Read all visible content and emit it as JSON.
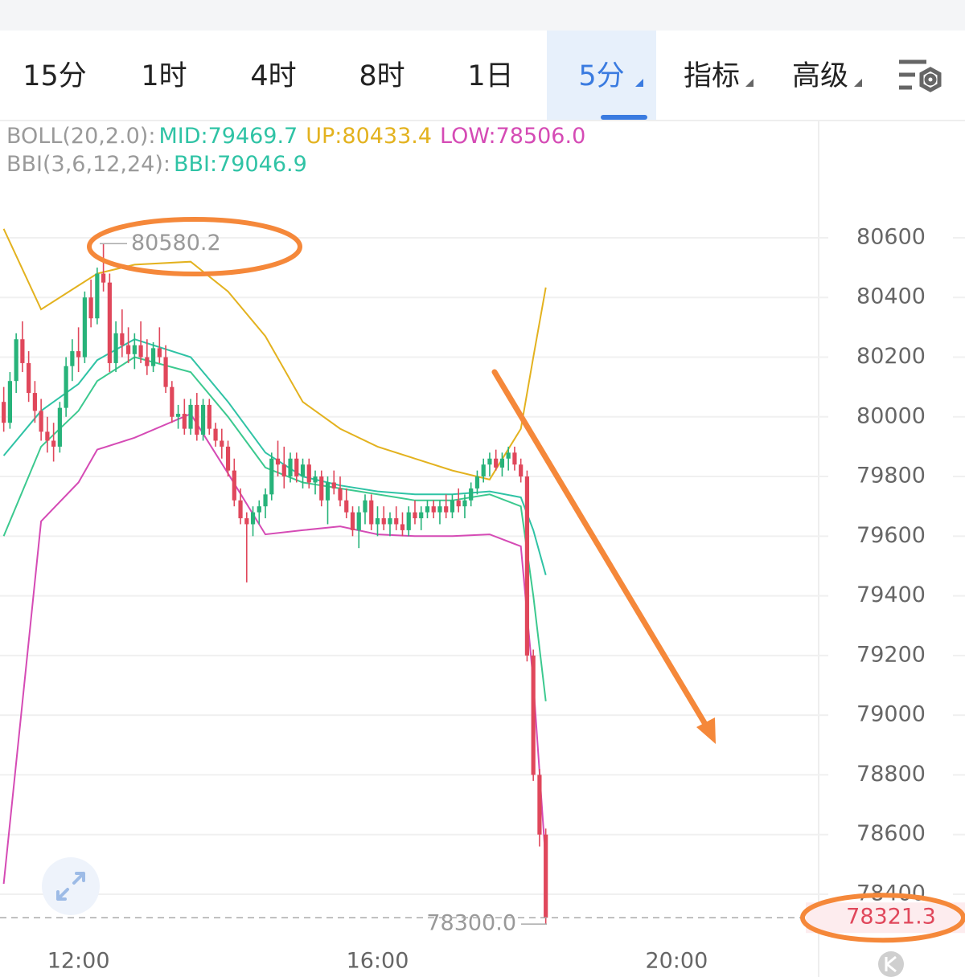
{
  "tabs": [
    {
      "label": "15分"
    },
    {
      "label": "1时"
    },
    {
      "label": "4时"
    },
    {
      "label": "8时"
    },
    {
      "label": "1日"
    },
    {
      "label": "5分",
      "active": true,
      "dropdown": true
    },
    {
      "label": "指标",
      "dropdown": true
    },
    {
      "label": "高级",
      "dropdown": true
    }
  ],
  "legend": [
    [
      {
        "text": "BOLL(20,2.0):",
        "color": "#9a9a9a"
      },
      {
        "text": "MID:79469.7",
        "color": "#2fc3a5"
      },
      {
        "text": "UP:80433.4",
        "color": "#e3b21f"
      },
      {
        "text": "LOW:78506.0",
        "color": "#d54bb5"
      }
    ],
    [
      {
        "text": "BBI(3,6,12,24):",
        "color": "#9a9a9a"
      },
      {
        "text": "BBI:79046.9",
        "color": "#2fc3a5"
      }
    ]
  ],
  "chart_data": {
    "type": "candlestick",
    "xlim": [
      "10:57",
      "21:54"
    ],
    "xticks": [
      "12:00",
      "16:00",
      "20:00"
    ],
    "ylim": [
      78233,
      80993
    ],
    "yticks": [
      80600,
      80400,
      80200,
      80000,
      79800,
      79600,
      79400,
      79200,
      79000,
      78800,
      78600,
      78400
    ],
    "up_color": "#27b37a",
    "down_color": "#e0475b",
    "candles": {
      "x": [
        "11:00",
        "11:05",
        "11:10",
        "11:15",
        "11:20",
        "11:25",
        "11:30",
        "11:35",
        "11:40",
        "11:45",
        "11:50",
        "11:55",
        "12:00",
        "12:05",
        "12:10",
        "12:15",
        "12:20",
        "12:25",
        "12:30",
        "12:35",
        "12:40",
        "12:45",
        "12:50",
        "12:55",
        "13:00",
        "13:05",
        "13:10",
        "13:15",
        "13:20",
        "13:25",
        "13:30",
        "13:35",
        "13:40",
        "13:45",
        "13:50",
        "13:55",
        "14:00",
        "14:05",
        "14:10",
        "14:15",
        "14:20",
        "14:25",
        "14:30",
        "14:35",
        "14:40",
        "14:45",
        "14:50",
        "14:55",
        "15:00",
        "15:05",
        "15:10",
        "15:15",
        "15:20",
        "15:25",
        "15:30",
        "15:35",
        "15:40",
        "15:45",
        "15:50",
        "15:55",
        "16:00",
        "16:05",
        "16:10",
        "16:15",
        "16:20",
        "16:25",
        "16:30",
        "16:35",
        "16:40",
        "16:45",
        "16:50",
        "16:55",
        "17:00",
        "17:05",
        "17:10",
        "17:15",
        "17:20",
        "17:25",
        "17:30",
        "17:35",
        "17:40",
        "17:45",
        "17:50",
        "17:55",
        "18:00",
        "18:05",
        "18:10",
        "18:15"
      ],
      "ohlc": [
        [
          80050,
          80100,
          79950,
          79980
        ],
        [
          79980,
          80150,
          79960,
          80120
        ],
        [
          80120,
          80280,
          80080,
          80260
        ],
        [
          80260,
          80320,
          80150,
          80180
        ],
        [
          80180,
          80220,
          80050,
          80080
        ],
        [
          80080,
          80120,
          79980,
          80020
        ],
        [
          80020,
          80060,
          79920,
          79950
        ],
        [
          79950,
          80000,
          79880,
          79920
        ],
        [
          79920,
          79980,
          79850,
          79900
        ],
        [
          79900,
          80050,
          79880,
          80030
        ],
        [
          80030,
          80200,
          80000,
          80170
        ],
        [
          80170,
          80260,
          80120,
          80220
        ],
        [
          80220,
          80300,
          80150,
          80200
        ],
        [
          80200,
          80420,
          80180,
          80400
        ],
        [
          80400,
          80460,
          80300,
          80330
        ],
        [
          80330,
          80500,
          80310,
          80480
        ],
        [
          80480,
          80580.2,
          80420,
          80450
        ],
        [
          80450,
          80480,
          80150,
          80180
        ],
        [
          80180,
          80320,
          80150,
          80280
        ],
        [
          80280,
          80360,
          80200,
          80240
        ],
        [
          80240,
          80300,
          80180,
          80210
        ],
        [
          80210,
          80280,
          80160,
          80240
        ],
        [
          80240,
          80320,
          80180,
          80200
        ],
        [
          80200,
          80260,
          80140,
          80170
        ],
        [
          80170,
          80250,
          80150,
          80230
        ],
        [
          80230,
          80300,
          80180,
          80200
        ],
        [
          80200,
          80240,
          80080,
          80100
        ],
        [
          80100,
          80120,
          79980,
          80000
        ],
        [
          80000,
          80040,
          79960,
          80010
        ],
        [
          80010,
          80060,
          79940,
          79960
        ],
        [
          79960,
          80060,
          79940,
          80040
        ],
        [
          80040,
          80080,
          79920,
          79940
        ],
        [
          79940,
          80060,
          79920,
          80040
        ],
        [
          80040,
          80060,
          79940,
          79960
        ],
        [
          79960,
          79980,
          79900,
          79920
        ],
        [
          79920,
          79960,
          79860,
          79900
        ],
        [
          79900,
          79920,
          79800,
          79820
        ],
        [
          79820,
          79860,
          79700,
          79720
        ],
        [
          79720,
          79760,
          79640,
          79660
        ],
        [
          79660,
          79680,
          79445,
          79640
        ],
        [
          79640,
          79700,
          79600,
          79680
        ],
        [
          79680,
          79720,
          79640,
          79700
        ],
        [
          79700,
          79760,
          79660,
          79740
        ],
        [
          79740,
          79880,
          79720,
          79860
        ],
        [
          79860,
          79920,
          79800,
          79840
        ],
        [
          79840,
          79900,
          79760,
          79800
        ],
        [
          79800,
          79880,
          79780,
          79860
        ],
        [
          79860,
          79880,
          79780,
          79800
        ],
        [
          79800,
          79860,
          79760,
          79840
        ],
        [
          79840,
          79860,
          79760,
          79780
        ],
        [
          79780,
          79820,
          79740,
          79800
        ],
        [
          79800,
          79820,
          79700,
          79720
        ],
        [
          79720,
          79800,
          79640,
          79780
        ],
        [
          79780,
          79820,
          79740,
          79760
        ],
        [
          79760,
          79800,
          79700,
          79720
        ],
        [
          79720,
          79760,
          79660,
          79680
        ],
        [
          79680,
          79700,
          79600,
          79620
        ],
        [
          79620,
          79700,
          79560,
          79680
        ],
        [
          79680,
          79740,
          79640,
          79720
        ],
        [
          79720,
          79740,
          79620,
          79640
        ],
        [
          79640,
          79700,
          79600,
          79660
        ],
        [
          79660,
          79700,
          79620,
          79640
        ],
        [
          79640,
          79680,
          79600,
          79660
        ],
        [
          79660,
          79700,
          79620,
          79640
        ],
        [
          79640,
          79680,
          79600,
          79620
        ],
        [
          79620,
          79700,
          79600,
          79680
        ],
        [
          79680,
          79720,
          79640,
          79660
        ],
        [
          79660,
          79700,
          79620,
          79680
        ],
        [
          79680,
          79720,
          79660,
          79700
        ],
        [
          79700,
          79720,
          79660,
          79680
        ],
        [
          79680,
          79720,
          79640,
          79700
        ],
        [
          79700,
          79740,
          79660,
          79680
        ],
        [
          79680,
          79740,
          79660,
          79720
        ],
        [
          79720,
          79760,
          79680,
          79700
        ],
        [
          79700,
          79740,
          79660,
          79720
        ],
        [
          79720,
          79780,
          79700,
          79760
        ],
        [
          79760,
          79820,
          79740,
          79800
        ],
        [
          79800,
          79860,
          79780,
          79840
        ],
        [
          79840,
          79880,
          79800,
          79860
        ],
        [
          79860,
          79890,
          79820,
          79830
        ],
        [
          79830,
          79880,
          79800,
          79860
        ],
        [
          79860,
          79900,
          79820,
          79880
        ],
        [
          79880,
          79900,
          79820,
          79840
        ],
        [
          79840,
          79860,
          79780,
          79800
        ],
        [
          79800,
          79820,
          79180,
          79200
        ],
        [
          79200,
          79220,
          78780,
          78800
        ],
        [
          78800,
          78820,
          78560,
          78600
        ],
        [
          78600,
          78620,
          78300,
          78321.3
        ]
      ]
    },
    "lines": {
      "x": [
        "11:00",
        "11:30",
        "12:00",
        "12:15",
        "12:45",
        "13:30",
        "14:00",
        "14:30",
        "15:00",
        "15:30",
        "16:00",
        "16:30",
        "17:00",
        "17:30",
        "17:55",
        "18:05",
        "18:15"
      ],
      "series": [
        {
          "name": "UP",
          "color": "#e3b21f",
          "values": [
            80630,
            80360,
            80440,
            80480,
            80510,
            80520,
            80420,
            80270,
            80050,
            79960,
            79900,
            79860,
            79820,
            79790,
            79960,
            80200,
            80433.4
          ]
        },
        {
          "name": "MID",
          "color": "#2fc3a5",
          "values": [
            79870,
            80020,
            80110,
            80190,
            80260,
            80200,
            80050,
            79880,
            79800,
            79770,
            79750,
            79740,
            79740,
            79750,
            79730,
            79620,
            79469.7
          ]
        },
        {
          "name": "LOW",
          "color": "#d54bb5",
          "values": [
            78435,
            79650,
            79780,
            79890,
            79930,
            80010,
            79810,
            79606,
            79620,
            79633,
            79606,
            79600,
            79600,
            79606,
            79566,
            79110,
            78506.0
          ]
        },
        {
          "name": "BBI",
          "color": "#3cc98f",
          "values": [
            79600,
            79900,
            80020,
            80120,
            80200,
            80150,
            80000,
            79830,
            79780,
            79760,
            79740,
            79720,
            79720,
            79740,
            79700,
            79400,
            79046.9
          ]
        }
      ]
    },
    "high_marker": {
      "value": 80580.2,
      "label": "80580.2"
    },
    "low_marker": {
      "value": 78300,
      "label": "78300.0"
    },
    "last_price": 78321.3
  }
}
